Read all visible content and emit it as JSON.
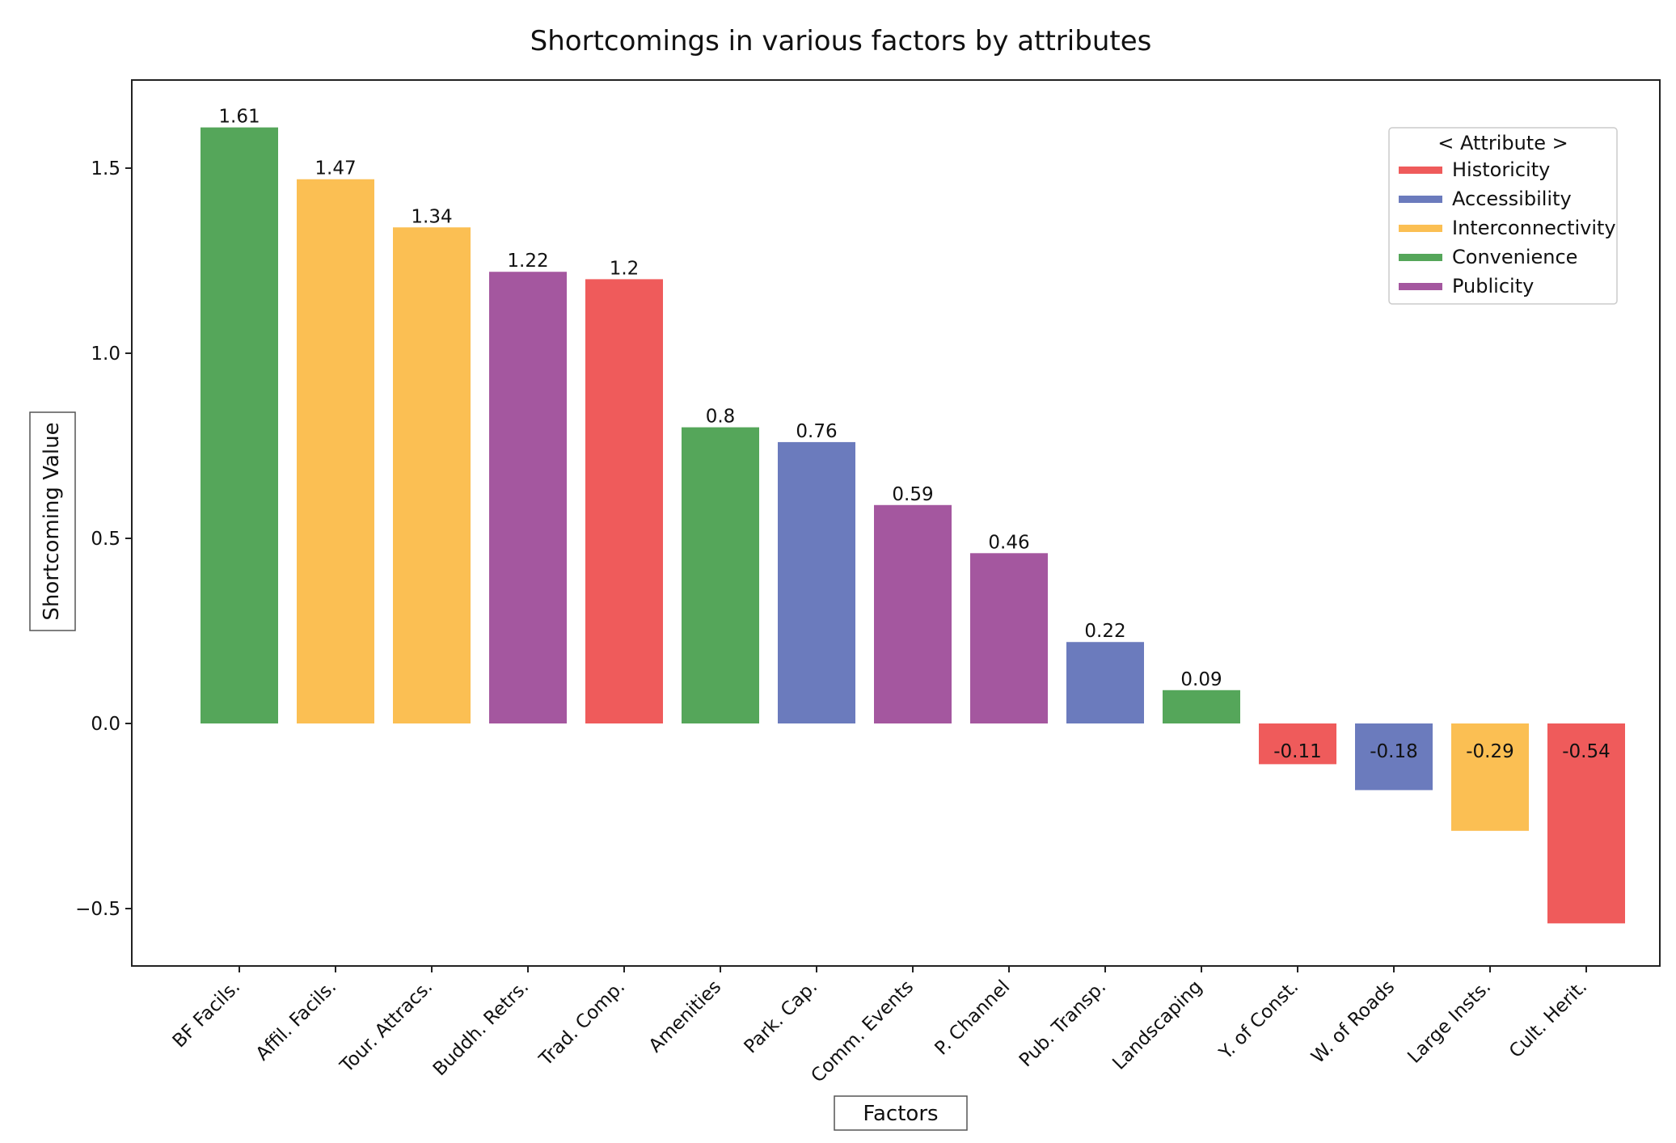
{
  "chart_data": {
    "type": "bar",
    "title": "Shortcomings in various factors by attributes",
    "xlabel": "Factors",
    "ylabel": "Shortcoming Value",
    "ylim": [
      -0.65,
      1.75
    ],
    "yticks": [
      -0.5,
      0.0,
      0.5,
      1.0,
      1.5
    ],
    "ytick_labels": [
      "−0.5",
      "0.0",
      "0.5",
      "1.0",
      "1.5"
    ],
    "categories": [
      "BF Facils.",
      "Affil. Facils.",
      "Tour. Attracs.",
      "Buddh. Retrs.",
      "Trad. Comp.",
      "Amenities",
      "Park. Cap.",
      "Comm. Events",
      "P. Channel",
      "Pub. Transp.",
      "Landscaping",
      "Y. of Const.",
      "W. of Roads",
      "Large Insts.",
      "Cult. Herit."
    ],
    "values": [
      1.61,
      1.47,
      1.34,
      1.22,
      1.2,
      0.8,
      0.76,
      0.59,
      0.46,
      0.22,
      0.09,
      -0.11,
      -0.18,
      -0.29,
      -0.54
    ],
    "value_labels": [
      "1.61",
      "1.47",
      "1.34",
      "1.22",
      "1.2",
      "0.8",
      "0.76",
      "0.59",
      "0.46",
      "0.22",
      "0.09",
      "-0.11",
      "-0.18",
      "-0.29",
      "-0.54"
    ],
    "attributes": [
      "Convenience",
      "Interconnectivity",
      "Interconnectivity",
      "Publicity",
      "Historicity",
      "Convenience",
      "Accessibility",
      "Publicity",
      "Publicity",
      "Accessibility",
      "Convenience",
      "Historicity",
      "Accessibility",
      "Interconnectivity",
      "Historicity"
    ],
    "legend": {
      "title": "< Attribute >",
      "position": "top-right",
      "entries": [
        {
          "name": "Historicity",
          "color": "#ef5b5b"
        },
        {
          "name": "Accessibility",
          "color": "#6b7bbd"
        },
        {
          "name": "Interconnectivity",
          "color": "#fbbf53"
        },
        {
          "name": "Convenience",
          "color": "#55a65a"
        },
        {
          "name": "Publicity",
          "color": "#a4579f"
        }
      ]
    },
    "grid": false
  }
}
